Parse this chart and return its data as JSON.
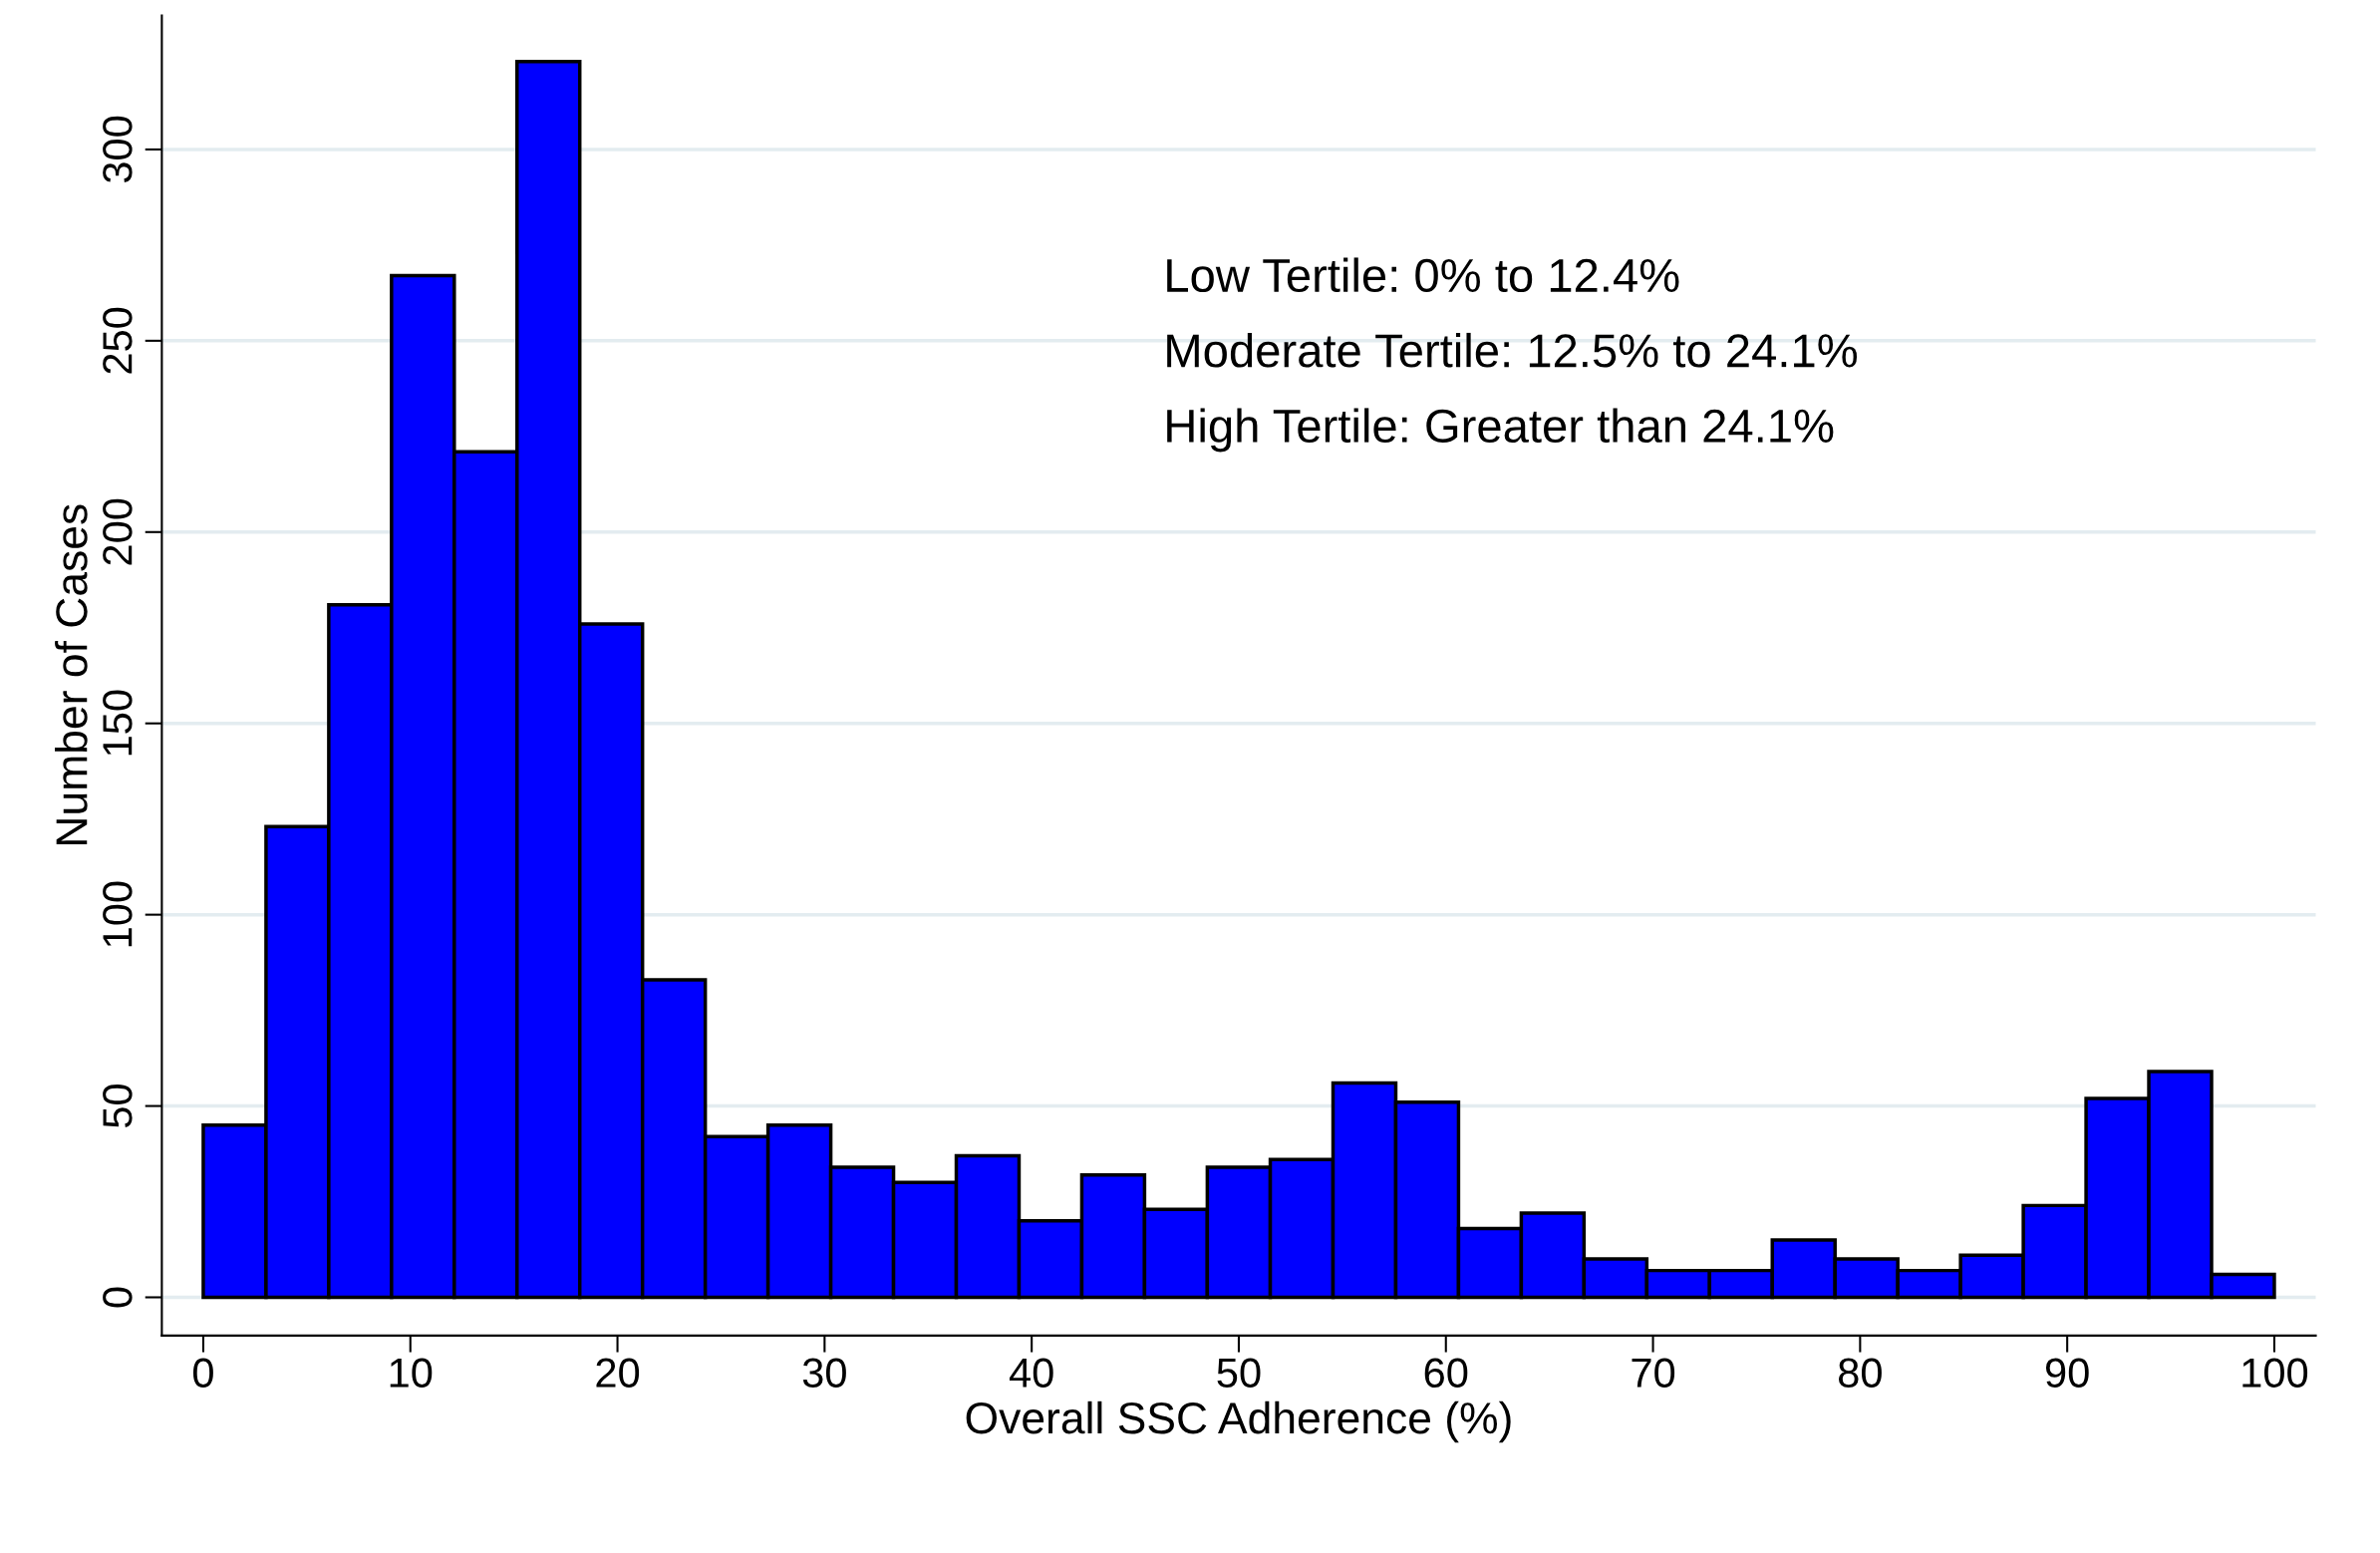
{
  "chart_data": {
    "type": "histogram",
    "xlabel": "Overall SSC Adherence (%)",
    "ylabel": "Number of Cases",
    "bins": [
      0,
      3.03,
      6.06,
      9.09,
      12.12,
      15.15,
      18.18,
      21.21,
      24.24,
      27.27,
      30.3,
      33.33,
      36.36,
      39.39,
      42.42,
      45.45,
      48.48,
      51.52,
      54.55,
      57.58,
      60.61,
      63.64,
      66.67,
      69.7,
      72.73,
      75.76,
      78.79,
      81.82,
      84.85,
      87.88,
      90.91,
      93.94,
      96.97,
      100
    ],
    "values": [
      45,
      123,
      181,
      267,
      221,
      323,
      176,
      83,
      42,
      45,
      34,
      30,
      37,
      20,
      32,
      23,
      34,
      36,
      56,
      51,
      18,
      22,
      10,
      7,
      7,
      15,
      10,
      7,
      11,
      24,
      52,
      59,
      6
    ],
    "color": "#0000ff",
    "xlim": [
      -2,
      102
    ],
    "ylim": [
      -10,
      335
    ],
    "xticks": [
      0,
      10,
      20,
      30,
      40,
      50,
      60,
      70,
      80,
      90,
      100
    ],
    "yticks": [
      0,
      50,
      100,
      150,
      200,
      250,
      300
    ],
    "grid": "y",
    "annotations": [
      "Low Tertile: 0% to 12.4%",
      "Moderate Tertile: 12.5% to 24.1%",
      "High Tertile: Greater than 24.1%"
    ]
  }
}
